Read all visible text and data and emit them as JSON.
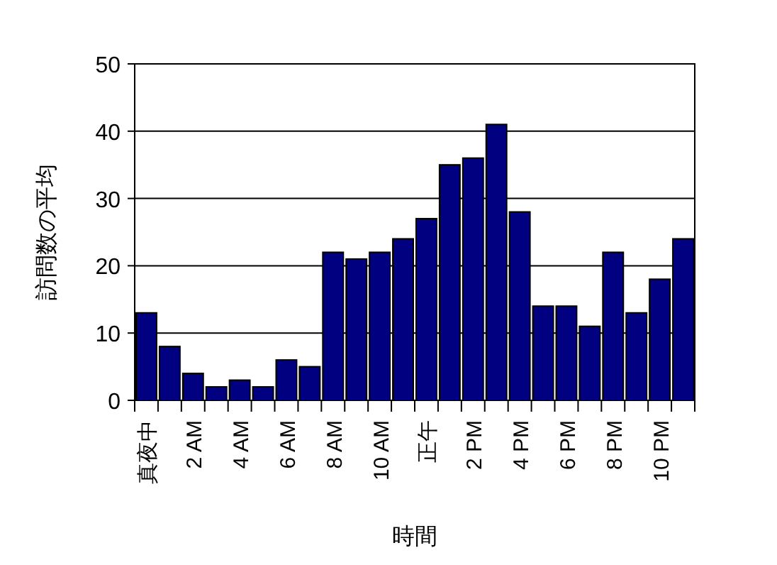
{
  "chart_data": {
    "type": "bar",
    "xlabel": "時間",
    "ylabel": "訪問数の平均",
    "categories": [
      "真夜中",
      null,
      "2 AM",
      null,
      "4 AM",
      null,
      "6 AM",
      null,
      "8 AM",
      null,
      "10 AM",
      null,
      "正午",
      null,
      "2 PM",
      null,
      "4 PM",
      null,
      "6 PM",
      null,
      "8 PM",
      null,
      "10 PM",
      null
    ],
    "values": [
      13,
      8,
      4,
      2,
      3,
      2,
      6,
      5,
      22,
      21,
      22,
      24,
      27,
      35,
      36,
      41,
      28,
      14,
      14,
      11,
      22,
      13,
      18,
      24
    ],
    "color": "#000080",
    "ylim": [
      0,
      50
    ],
    "yticks": [
      0,
      10,
      20,
      30,
      40,
      50
    ],
    "grid": "y"
  }
}
